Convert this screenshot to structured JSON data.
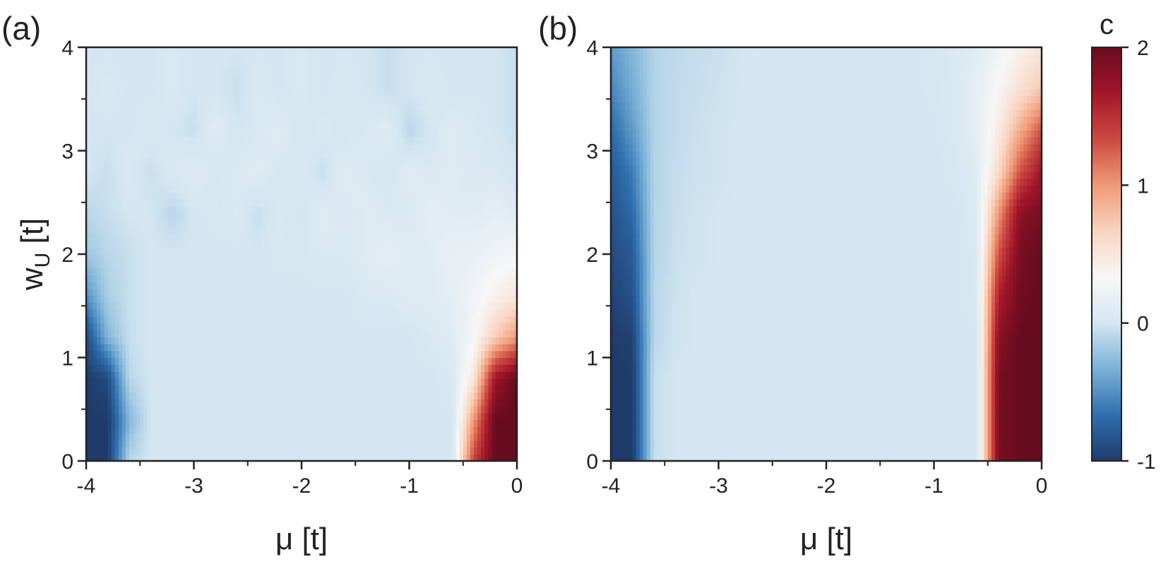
{
  "chart_data": [
    {
      "type": "heatmap",
      "panel_label": "(a)",
      "xlabel": "μ [t]",
      "ylabel_main": "w",
      "ylabel_sub": "U",
      "ylabel_unit": " [t]",
      "xlim": [
        -4,
        0
      ],
      "ylim": [
        0,
        4
      ],
      "xticks": [
        -4,
        -3,
        -2,
        -1,
        0
      ],
      "yticks": [
        0,
        1,
        2,
        3,
        4
      ],
      "xtick_labels": [
        "-4",
        "-3",
        "-2",
        "-1",
        "0"
      ],
      "ytick_labels": [
        "0",
        "1",
        "2",
        "3",
        "4"
      ],
      "x": [
        -4.0,
        -3.8,
        -3.6,
        -3.4,
        -3.2,
        -3.0,
        -2.8,
        -2.6,
        -2.4,
        -2.2,
        -2.0,
        -1.8,
        -1.6,
        -1.4,
        -1.2,
        -1.0,
        -0.8,
        -0.6,
        -0.4,
        -0.2,
        0.0
      ],
      "y": [
        0.0,
        0.4,
        0.8,
        1.2,
        1.6,
        2.0,
        2.4,
        2.8,
        3.2,
        3.6,
        4.0
      ],
      "z": [
        [
          -1.0,
          -1.0,
          -0.1,
          0.0,
          0.0,
          0.0,
          0.0,
          0.0,
          0.0,
          0.0,
          0.0,
          0.0,
          0.0,
          0.0,
          0.0,
          0.0,
          0.0,
          0.0,
          1.4,
          2.0,
          2.0
        ],
        [
          -1.0,
          -1.0,
          -0.3,
          0.0,
          0.0,
          0.0,
          0.0,
          0.0,
          0.0,
          0.0,
          0.0,
          0.0,
          0.0,
          0.0,
          0.0,
          0.0,
          0.0,
          0.0,
          1.0,
          2.0,
          2.0
        ],
        [
          -1.0,
          -0.9,
          -0.1,
          0.0,
          0.0,
          0.0,
          0.0,
          0.0,
          0.0,
          0.0,
          0.0,
          0.0,
          0.0,
          0.0,
          0.0,
          0.0,
          0.0,
          0.05,
          0.5,
          1.7,
          2.0
        ],
        [
          -0.9,
          -0.3,
          -0.05,
          0.0,
          0.0,
          0.0,
          0.0,
          0.0,
          0.0,
          0.0,
          0.0,
          0.0,
          0.0,
          0.0,
          0.0,
          0.0,
          0.05,
          0.1,
          0.3,
          0.7,
          1.0
        ],
        [
          -0.5,
          -0.15,
          -0.05,
          0.0,
          0.0,
          0.0,
          0.0,
          0.0,
          0.0,
          0.0,
          0.0,
          0.0,
          0.0,
          0.05,
          0.05,
          0.1,
          0.1,
          0.15,
          0.25,
          0.4,
          0.5
        ],
        [
          -0.2,
          -0.1,
          -0.05,
          0.0,
          0.0,
          0.0,
          0.0,
          0.0,
          0.0,
          0.02,
          0.02,
          0.05,
          0.05,
          0.1,
          0.15,
          0.1,
          0.1,
          0.2,
          0.2,
          0.25,
          0.3
        ],
        [
          -0.1,
          -0.05,
          0.0,
          0.0,
          -0.1,
          0.0,
          0.02,
          0.05,
          -0.05,
          0.05,
          0.0,
          0.1,
          0.05,
          0.1,
          0.05,
          0.05,
          0.15,
          0.1,
          0.1,
          0.15,
          0.1
        ],
        [
          0.0,
          -0.05,
          0.05,
          -0.05,
          0.05,
          0.1,
          0.0,
          0.05,
          0.1,
          0.0,
          0.05,
          -0.05,
          0.1,
          0.05,
          0.0,
          0.1,
          0.05,
          0.1,
          0.05,
          0.05,
          0.0
        ],
        [
          0.0,
          0.0,
          0.0,
          0.05,
          0.0,
          -0.05,
          0.1,
          0.0,
          0.05,
          0.1,
          0.0,
          0.05,
          0.0,
          0.05,
          0.1,
          -0.1,
          0.0,
          0.1,
          0.05,
          0.0,
          -0.05
        ],
        [
          0.0,
          0.05,
          0.0,
          0.0,
          0.05,
          0.0,
          0.0,
          -0.05,
          0.05,
          0.0,
          0.05,
          0.0,
          0.05,
          0.0,
          -0.05,
          0.0,
          0.05,
          0.0,
          0.0,
          0.0,
          -0.05
        ],
        [
          0.0,
          0.0,
          0.0,
          0.0,
          0.05,
          0.0,
          0.0,
          0.0,
          0.0,
          0.0,
          0.05,
          0.0,
          0.0,
          0.0,
          -0.05,
          0.0,
          0.0,
          0.0,
          0.0,
          0.0,
          -0.05
        ]
      ]
    },
    {
      "type": "heatmap",
      "panel_label": "(b)",
      "xlabel": "μ [t]",
      "xlim": [
        -4,
        0
      ],
      "ylim": [
        0,
        4
      ],
      "xticks": [
        -4,
        -3,
        -2,
        -1,
        0
      ],
      "yticks": [
        0,
        1,
        2,
        3,
        4
      ],
      "xtick_labels": [
        "-4",
        "-3",
        "-2",
        "-1",
        "0"
      ],
      "ytick_labels": [
        "0",
        "1",
        "2",
        "3",
        "4"
      ],
      "x": [
        -4.0,
        -3.8,
        -3.6,
        -3.4,
        -3.2,
        -3.0,
        -2.8,
        -2.6,
        -2.4,
        -2.2,
        -2.0,
        -1.8,
        -1.6,
        -1.4,
        -1.2,
        -1.0,
        -0.8,
        -0.6,
        -0.4,
        -0.2,
        0.0
      ],
      "y": [
        0.0,
        0.4,
        0.8,
        1.2,
        1.6,
        2.0,
        2.4,
        2.8,
        3.2,
        3.6,
        4.0
      ],
      "z": [
        [
          -1.0,
          -1.0,
          -0.05,
          0.0,
          0.0,
          0.0,
          0.0,
          0.0,
          0.0,
          0.0,
          0.0,
          0.0,
          0.0,
          0.0,
          0.0,
          0.0,
          0.0,
          0.0,
          1.9,
          2.0,
          2.0
        ],
        [
          -1.0,
          -1.0,
          -0.05,
          0.0,
          0.0,
          0.0,
          0.0,
          0.0,
          0.0,
          0.0,
          0.0,
          0.0,
          0.0,
          0.0,
          0.0,
          0.0,
          0.0,
          0.0,
          1.9,
          2.0,
          2.0
        ],
        [
          -1.0,
          -1.0,
          -0.05,
          0.0,
          0.0,
          0.0,
          0.0,
          0.0,
          0.0,
          0.0,
          0.0,
          0.0,
          0.0,
          0.0,
          0.0,
          0.0,
          0.0,
          0.0,
          1.9,
          2.0,
          2.0
        ],
        [
          -1.0,
          -0.95,
          -0.1,
          -0.02,
          0.0,
          0.0,
          0.0,
          0.0,
          0.0,
          0.0,
          0.0,
          0.0,
          0.0,
          0.0,
          0.0,
          0.0,
          0.0,
          0.0,
          1.8,
          2.0,
          2.0
        ],
        [
          -0.95,
          -0.85,
          -0.1,
          -0.03,
          0.0,
          0.0,
          0.0,
          0.0,
          0.0,
          0.0,
          0.0,
          0.0,
          0.0,
          0.0,
          0.0,
          0.0,
          0.0,
          0.05,
          1.6,
          1.95,
          2.0
        ],
        [
          -0.9,
          -0.8,
          -0.12,
          -0.04,
          -0.02,
          0.0,
          0.0,
          0.0,
          0.0,
          0.0,
          0.0,
          0.0,
          0.0,
          0.0,
          0.0,
          0.0,
          0.0,
          0.05,
          1.3,
          1.9,
          2.0
        ],
        [
          -0.85,
          -0.7,
          -0.12,
          -0.05,
          -0.02,
          0.0,
          0.0,
          0.0,
          0.0,
          0.0,
          0.0,
          0.0,
          0.0,
          0.0,
          0.0,
          0.0,
          0.0,
          0.08,
          1.0,
          1.8,
          1.9
        ],
        [
          -0.8,
          -0.6,
          -0.12,
          -0.06,
          -0.03,
          -0.02,
          0.0,
          0.0,
          0.0,
          0.0,
          0.0,
          0.0,
          0.0,
          0.0,
          0.0,
          0.0,
          0.02,
          0.1,
          0.6,
          1.3,
          1.7
        ],
        [
          -0.7,
          -0.45,
          -0.12,
          -0.07,
          -0.04,
          -0.02,
          0.0,
          0.0,
          0.0,
          0.0,
          0.0,
          0.0,
          0.0,
          0.0,
          0.0,
          0.0,
          0.05,
          0.15,
          0.45,
          0.9,
          1.3
        ],
        [
          -0.55,
          -0.35,
          -0.12,
          -0.07,
          -0.05,
          -0.03,
          0.0,
          0.0,
          0.0,
          0.0,
          0.0,
          0.0,
          0.0,
          0.0,
          0.0,
          0.02,
          0.05,
          0.15,
          0.35,
          0.55,
          0.75
        ],
        [
          -0.45,
          -0.3,
          -0.12,
          -0.08,
          -0.06,
          -0.04,
          -0.01,
          0.0,
          0.0,
          0.0,
          0.0,
          0.0,
          0.0,
          0.0,
          0.0,
          0.03,
          0.05,
          0.12,
          0.25,
          0.4,
          0.5
        ]
      ]
    }
  ],
  "colorbar": {
    "title": "c",
    "vmin": -1,
    "vmax": 2,
    "ticks": [
      -1,
      0,
      1,
      2
    ],
    "tick_labels": [
      "-1",
      "0",
      "1",
      "2"
    ],
    "colormap": [
      "#1f3b6b",
      "#2f6fae",
      "#79b1d7",
      "#d4e6f1",
      "#f7f7f7",
      "#f8d4c0",
      "#ef9a76",
      "#cc4a40",
      "#a3162a",
      "#670b1f"
    ]
  }
}
